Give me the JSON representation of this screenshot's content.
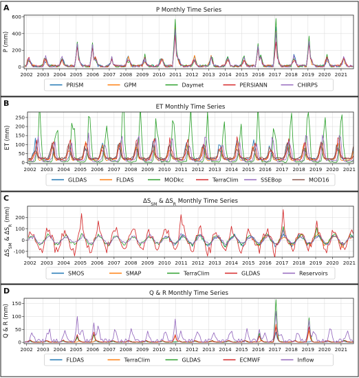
{
  "chart_data": [
    {
      "type": "line",
      "panel_label": "A",
      "title": "P Monthly Time Series",
      "ylabel": "P (mm)",
      "ylim": [
        -20,
        620
      ],
      "yticks": [
        0,
        200,
        400,
        600
      ],
      "xlim": [
        2001.85,
        2021.75
      ],
      "xticks": [
        2002,
        2003,
        2004,
        2005,
        2006,
        2007,
        2008,
        2009,
        2010,
        2011,
        2012,
        2013,
        2014,
        2015,
        2016,
        2017,
        2018,
        2019,
        2020,
        2021
      ],
      "grid": true,
      "legend_position": "bottom",
      "series": [
        {
          "name": "PRISM",
          "color": "#1f77b4",
          "base": 10,
          "amp": 95,
          "peak_month": 0.15,
          "noise": 0.35,
          "seed": 11,
          "end": 2021.75
        },
        {
          "name": "GPM",
          "color": "#ff7f0e",
          "base": 10,
          "amp": 90,
          "peak_month": 0.15,
          "noise": 0.35,
          "seed": 12,
          "end": 2021.75
        },
        {
          "name": "Daymet",
          "color": "#2ca02c",
          "base": 10,
          "amp": 100,
          "peak_month": 0.15,
          "noise": 0.35,
          "seed": 13,
          "end": 2021.0
        },
        {
          "name": "PERSIANN",
          "color": "#d62728",
          "base": 10,
          "amp": 85,
          "peak_month": 0.15,
          "noise": 0.35,
          "seed": 14,
          "end": 2021.75
        },
        {
          "name": "CHIRPS",
          "color": "#9467bd",
          "base": 10,
          "amp": 90,
          "peak_month": 0.15,
          "noise": 0.35,
          "seed": 15,
          "end": 2021.75
        }
      ],
      "peaks": [
        {
          "x": 2005.05,
          "values": {
            "PRISM": 290,
            "GPM": 270,
            "Daymet": 300,
            "PERSIANN": 250,
            "CHIRPS": 280
          }
        },
        {
          "x": 2005.95,
          "values": {
            "PRISM": 280,
            "GPM": 260,
            "Daymet": 290,
            "PERSIANN": 240,
            "CHIRPS": 270
          }
        },
        {
          "x": 2011.0,
          "values": {
            "PRISM": 520,
            "GPM": 480,
            "Daymet": 570,
            "PERSIANN": 380,
            "CHIRPS": 450
          }
        },
        {
          "x": 2016.0,
          "values": {
            "PRISM": 260,
            "GPM": 240,
            "Daymet": 280,
            "PERSIANN": 230,
            "CHIRPS": 250
          }
        },
        {
          "x": 2017.05,
          "values": {
            "PRISM": 480,
            "GPM": 430,
            "Daymet": 580,
            "PERSIANN": 300,
            "CHIRPS": 420
          }
        },
        {
          "x": 2019.1,
          "values": {
            "PRISM": 330,
            "GPM": 320,
            "Daymet": 370,
            "PERSIANN": 280,
            "CHIRPS": 310
          }
        }
      ]
    },
    {
      "type": "line",
      "panel_label": "B",
      "title": "ET Monthly Time Series",
      "ylabel": "ET (mm)",
      "ylim": [
        -5,
        280
      ],
      "yticks": [
        0,
        50,
        100,
        150,
        200,
        250
      ],
      "xlim": [
        2001.85,
        2021.25
      ],
      "xticks": [
        2002,
        2003,
        2004,
        2005,
        2006,
        2007,
        2008,
        2009,
        2010,
        2011,
        2012,
        2013,
        2014,
        2015,
        2016,
        2017,
        2018,
        2019,
        2020,
        2021
      ],
      "grid": true,
      "legend_position": "bottom",
      "series": [
        {
          "name": "GLDAS",
          "color": "#1f77b4",
          "base": 20,
          "amp": 80,
          "peak_month": 0.3,
          "noise": 0.15,
          "seed": 21,
          "end": 2021.25
        },
        {
          "name": "FLDAS",
          "color": "#ff7f0e",
          "base": 15,
          "amp": 70,
          "peak_month": 0.3,
          "noise": 0.15,
          "seed": 22,
          "end": 2021.25
        },
        {
          "name": "MODkc",
          "color": "#2ca02c",
          "base": 5,
          "amp": 255,
          "peak_month": 0.55,
          "noise": 0.03,
          "seed": 23,
          "end": 2021.25
        },
        {
          "name": "TerraClim",
          "color": "#d62728",
          "base": 20,
          "amp": 90,
          "peak_month": 0.35,
          "noise": 0.15,
          "seed": 24,
          "end": 2021.25
        },
        {
          "name": "SSEBop",
          "color": "#9467bd",
          "base": 10,
          "amp": 120,
          "peak_month": 0.45,
          "noise": 0.1,
          "seed": 25,
          "end": 2021.25
        },
        {
          "name": "MOD16",
          "color": "#8c564b",
          "base": 25,
          "amp": 70,
          "peak_month": 0.3,
          "noise": 0.15,
          "seed": 26,
          "end": 2021.25
        }
      ]
    },
    {
      "type": "line",
      "panel_label": "C",
      "title": "ΔS_SM & ΔS_R Monthly Time Series",
      "ylabel": "ΔS_SM & ΔS_R (mm)",
      "ylim": [
        -150,
        300
      ],
      "yticks": [
        -100,
        0,
        100,
        200
      ],
      "xlim": [
        2001.85,
        2021.25
      ],
      "xticks": [
        2002,
        2003,
        2004,
        2005,
        2006,
        2007,
        2008,
        2009,
        2010,
        2011,
        2012,
        2013,
        2014,
        2015,
        2016,
        2017,
        2018,
        2019,
        2020,
        2021
      ],
      "grid": true,
      "legend_position": "bottom",
      "series": [
        {
          "name": "SMOS",
          "color": "#1f77b4",
          "base": 0,
          "amp": 35,
          "peak_month": 0.1,
          "noise": 0.6,
          "seed": 31,
          "start": 2010.0,
          "end": 2021.25
        },
        {
          "name": "SMAP",
          "color": "#ff7f0e",
          "base": 0,
          "amp": 40,
          "peak_month": 0.1,
          "noise": 0.6,
          "seed": 32,
          "start": 2015.25,
          "end": 2021.25
        },
        {
          "name": "TerraClim",
          "color": "#2ca02c",
          "base": 0,
          "amp": 35,
          "peak_month": 0.1,
          "noise": 0.6,
          "seed": 33,
          "end": 2021.25
        },
        {
          "name": "GLDAS",
          "color": "#d62728",
          "base": 0,
          "amp": 80,
          "peak_month": 0.1,
          "noise": 0.9,
          "seed": 34,
          "end": 2021.25
        },
        {
          "name": "Reservoirs",
          "color": "#9467bd",
          "base": 0,
          "amp": 30,
          "peak_month": 0.15,
          "noise": 0.5,
          "seed": 35,
          "end": 2021.25
        }
      ],
      "peaks": [
        {
          "x": 2005.1,
          "values": {
            "GLDAS": 235
          }
        },
        {
          "x": 2006.05,
          "values": {
            "GLDAS": 170
          }
        },
        {
          "x": 2011.0,
          "values": {
            "GLDAS": 225,
            "Reservoirs": 60
          }
        },
        {
          "x": 2017.05,
          "values": {
            "GLDAS": 270,
            "TerraClim": 120,
            "Reservoirs": 90
          }
        },
        {
          "x": 2019.1,
          "values": {
            "GLDAS": 170,
            "TerraClim": 110
          }
        }
      ]
    },
    {
      "type": "line",
      "panel_label": "D",
      "title": "Q & R Monthly Time Series",
      "ylabel": "Q & R (mm)",
      "ylim": [
        -5,
        170
      ],
      "yticks": [
        0,
        50,
        100,
        150
      ],
      "xlim": [
        2001.85,
        2021.75
      ],
      "xticks": [
        2002,
        2003,
        2004,
        2005,
        2006,
        2007,
        2008,
        2009,
        2010,
        2011,
        2012,
        2013,
        2014,
        2015,
        2016,
        2017,
        2018,
        2019,
        2020,
        2021
      ],
      "grid": true,
      "legend_position": "bottom",
      "series": [
        {
          "name": "FLDAS",
          "color": "#1f77b4",
          "base": 1,
          "amp": 4,
          "peak_month": 0.2,
          "noise": 0.5,
          "seed": 41,
          "end": 2021.75
        },
        {
          "name": "TerraClim",
          "color": "#ff7f0e",
          "base": 1,
          "amp": 5,
          "peak_month": 0.2,
          "noise": 0.5,
          "seed": 42,
          "end": 2021.75
        },
        {
          "name": "GLDAS",
          "color": "#2ca02c",
          "base": 1,
          "amp": 5,
          "peak_month": 0.2,
          "noise": 0.5,
          "seed": 43,
          "end": 2021.75
        },
        {
          "name": "ECMWF",
          "color": "#d62728",
          "base": 1,
          "amp": 6,
          "peak_month": 0.2,
          "noise": 0.5,
          "seed": 44,
          "end": 2021.75
        },
        {
          "name": "Inflow",
          "color": "#9467bd",
          "base": 5,
          "amp": 40,
          "peak_month": 0.35,
          "noise": 0.45,
          "seed": 45,
          "end": 2021.75
        }
      ],
      "peaks": [
        {
          "x": 2005.1,
          "values": {
            "ECMWF": 30,
            "FLDAS": 25,
            "GLDAS": 20,
            "Inflow": 100
          }
        },
        {
          "x": 2006.05,
          "values": {
            "ECMWF": 40,
            "GLDAS": 30,
            "Inflow": 75
          }
        },
        {
          "x": 2011.0,
          "values": {
            "ECMWF": 30,
            "TerraClim": 25,
            "Inflow": 90
          }
        },
        {
          "x": 2016.1,
          "values": {
            "ECMWF": 25,
            "GLDAS": 35,
            "Inflow": 50
          }
        },
        {
          "x": 2017.05,
          "values": {
            "GLDAS": 165,
            "ECMWF": 60,
            "TerraClim": 70,
            "FLDAS": 40,
            "Inflow": 120
          }
        },
        {
          "x": 2019.1,
          "values": {
            "GLDAS": 95,
            "ECMWF": 60,
            "TerraClim": 45,
            "Inflow": 85
          }
        }
      ]
    }
  ]
}
